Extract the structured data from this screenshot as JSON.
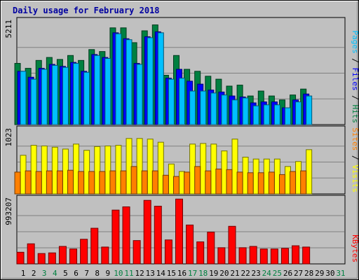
{
  "chart_data": {
    "type": "bar",
    "title": "Daily usage for February 2018",
    "x": [
      "1",
      "2",
      "3",
      "4",
      "5",
      "6",
      "7",
      "8",
      "9",
      "10",
      "11",
      "12",
      "13",
      "14",
      "15",
      "16",
      "17",
      "18",
      "19",
      "20",
      "21",
      "22",
      "23",
      "24",
      "25",
      "26",
      "27",
      "28",
      "29",
      "30",
      "31"
    ],
    "weekend_days": [
      "3",
      "4",
      "10",
      "11",
      "17",
      "18",
      "24",
      "25",
      "31"
    ],
    "panels": [
      {
        "id": "hits-files-pages",
        "ymax_label": "5211",
        "ymax": 5211,
        "series": [
          {
            "name": "Hits",
            "color": "#008040",
            "values": [
              3100,
              2850,
              3250,
              3400,
              3300,
              3500,
              3250,
              3800,
              3700,
              4900,
              4900,
              4150,
              4750,
              5050,
              2500,
              3500,
              2800,
              2700,
              2450,
              2300,
              1950,
              2000,
              1450,
              1700,
              1450,
              1250,
              1500,
              1800
            ]
          },
          {
            "name": "Files",
            "color": "#0000ff",
            "values": [
              2700,
              2400,
              2850,
              3050,
              2950,
              3150,
              2700,
              3550,
              3400,
              4650,
              4350,
              3100,
              4450,
              4700,
              2350,
              2800,
              2200,
              2050,
              1750,
              1650,
              1450,
              1400,
              1100,
              1150,
              1150,
              850,
              1250,
              1550
            ]
          },
          {
            "name": "Pages",
            "color": "#00c0ff",
            "values": [
              2700,
              2300,
              2800,
              3000,
              2900,
              3100,
              2650,
              3500,
              3350,
              4600,
              4300,
              3050,
              4400,
              4650,
              2300,
              2350,
              1700,
              1700,
              1600,
              1500,
              1250,
              1350,
              950,
              1000,
              1000,
              850,
              1150,
              1450
            ]
          }
        ],
        "label_parts": [
          {
            "text": "Pages",
            "color": "#00c0ff"
          },
          {
            "text": " / ",
            "color": "#000000"
          },
          {
            "text": "Files",
            "color": "#0000ff"
          },
          {
            "text": " / ",
            "color": "#000000"
          },
          {
            "text": "Hits",
            "color": "#008040"
          }
        ]
      },
      {
        "id": "visits-sites",
        "ymax_label": "1023",
        "ymax": 1023,
        "series": [
          {
            "name": "Visits",
            "color": "#ffff00",
            "values": [
              620,
              780,
              770,
              750,
              720,
              800,
              700,
              760,
              770,
              780,
              890,
              890,
              880,
              830,
              480,
              360,
              800,
              810,
              800,
              690,
              880,
              590,
              560,
              560,
              560,
              440,
              520,
              710
            ]
          },
          {
            "name": "Sites",
            "color": "#ff8000",
            "values": [
              350,
              370,
              360,
              370,
              370,
              380,
              360,
              360,
              360,
              370,
              370,
              440,
              370,
              370,
              300,
              280,
              350,
              440,
              370,
              400,
              390,
              350,
              340,
              340,
              350,
              310,
              360,
              370
            ]
          }
        ],
        "label_parts": [
          {
            "text": "Sites",
            "color": "#ff8000"
          },
          {
            "text": " / ",
            "color": "#000000"
          },
          {
            "text": "Visits",
            "color": "#ffff00"
          }
        ]
      },
      {
        "id": "kbytes",
        "ymax_label": "993207",
        "ymax": 993207,
        "series": [
          {
            "name": "KBytes",
            "color": "#ff0000",
            "values": [
              180000,
              310000,
              160000,
              170000,
              270000,
              230000,
              380000,
              550000,
              260000,
              830000,
              880000,
              360000,
              980000,
              890000,
              370000,
              1000000,
              600000,
              340000,
              490000,
              250000,
              580000,
              250000,
              270000,
              230000,
              230000,
              240000,
              280000,
              260000
            ]
          }
        ],
        "label_parts": [
          {
            "text": "KBytes",
            "color": "#ff0000"
          }
        ]
      }
    ]
  }
}
